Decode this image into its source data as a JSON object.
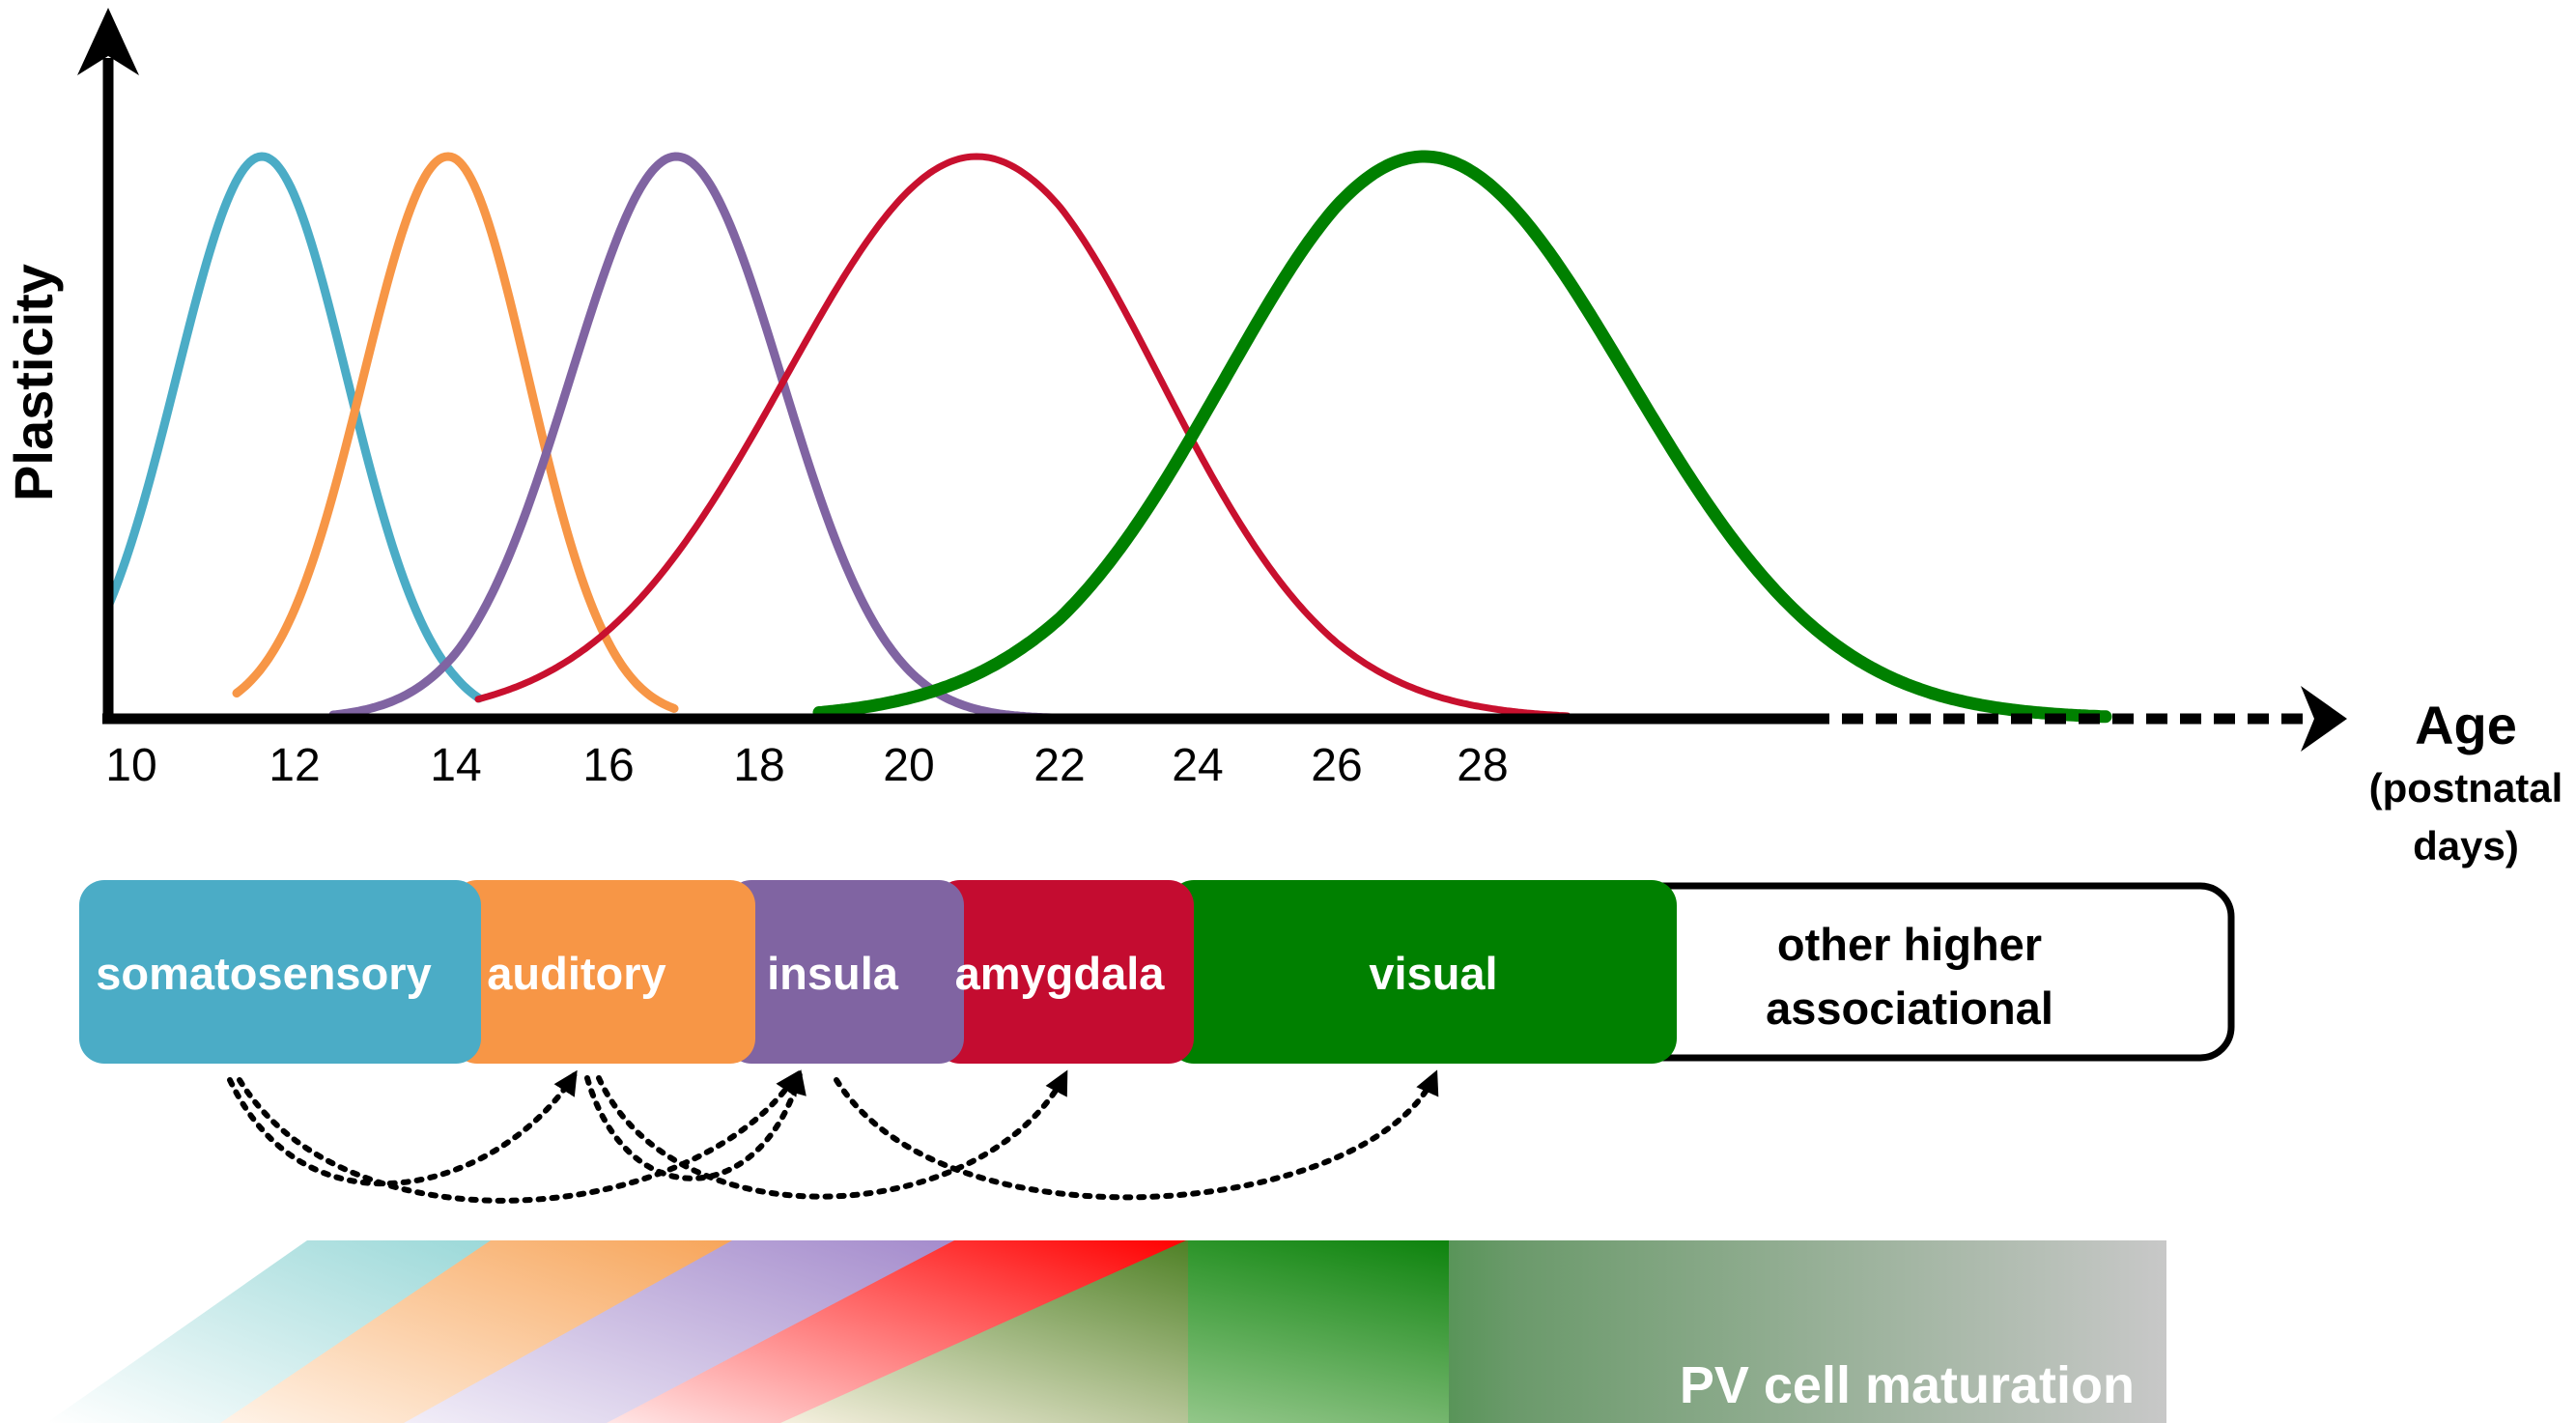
{
  "axis": {
    "y_label": "Plasticity",
    "x_label_main": "Age",
    "x_label_sub1": "(postnatal",
    "x_label_sub2": "days)",
    "ticks": [
      "10",
      "12",
      "14",
      "16",
      "18",
      "20",
      "22",
      "24",
      "26",
      "28"
    ]
  },
  "curves": [
    {
      "region": "somatosensory",
      "color": "#4bacc6",
      "peak_age": 11.6,
      "relative_plasticity": 1.0
    },
    {
      "region": "auditory",
      "color": "#f79646",
      "peak_age": 13.9,
      "relative_plasticity": 1.0
    },
    {
      "region": "insula",
      "color": "#8064a2",
      "peak_age": 16.9,
      "relative_plasticity": 1.0
    },
    {
      "region": "amygdala",
      "color": "#c8102e",
      "peak_age": 20.9,
      "relative_plasticity": 1.0
    },
    {
      "region": "visual",
      "color": "#008000",
      "peak_age": 27.2,
      "relative_plasticity": 1.0
    }
  ],
  "regions": [
    {
      "label": "somatosensory",
      "color": "#4bacc6"
    },
    {
      "label": "auditory",
      "color": "#f79646"
    },
    {
      "label": "insula",
      "color": "#8064a2"
    },
    {
      "label": "amygdala",
      "color": "#c8102e"
    },
    {
      "label": "visual",
      "color": "#008000"
    }
  ],
  "other_region": {
    "line1": "other higher",
    "line2": "associational"
  },
  "pv_label": "PV cell maturation"
}
